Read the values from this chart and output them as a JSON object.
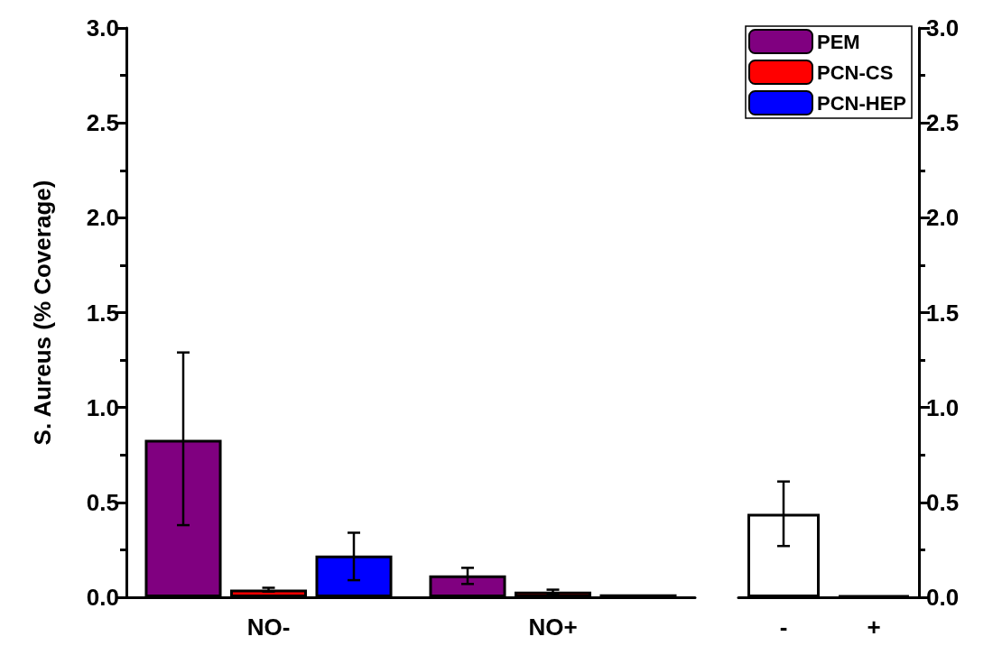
{
  "chart_data": [
    {
      "type": "bar",
      "ylabel": "S. Aureus (% Coverage)",
      "categories": [
        "NO-",
        "NO+"
      ],
      "series": [
        {
          "name": "PEM",
          "color": "#800080",
          "values": [
            0.83,
            0.115
          ],
          "errors": [
            [
              0.38,
              1.29
            ],
            [
              0.07,
              0.155
            ]
          ]
        },
        {
          "name": "PCN-CS",
          "color": "#ff0000",
          "values": [
            0.04,
            0.03
          ],
          "errors": [
            0.01,
            0.01
          ]
        },
        {
          "name": "PCN-HEP",
          "color": "#0000ff",
          "values": [
            0.22,
            0.015
          ],
          "errors": [
            [
              0.09,
              0.34
            ],
            null
          ]
        }
      ],
      "ylim": [
        0,
        3
      ],
      "yticks": [
        {
          "value": 0,
          "label": "0.0"
        },
        {
          "value": 0.5,
          "label": "0.5"
        },
        {
          "value": 1,
          "label": "1.0"
        },
        {
          "value": 1.5,
          "label": "1.5"
        },
        {
          "value": 2,
          "label": "2.0"
        },
        {
          "value": 2.5,
          "label": "2.5"
        },
        {
          "value": 3,
          "label": "3.0"
        }
      ],
      "legend": "top right",
      "grid": false
    },
    {
      "type": "bar",
      "categories": [
        "-",
        "+"
      ],
      "series": [
        {
          "color": "#ffffff",
          "colors": [
            "#ffffff",
            "#000000"
          ],
          "values": [
            0.44,
            0.01
          ],
          "errors": [
            [
              0.27,
              0.61
            ],
            null
          ]
        }
      ],
      "ylim": [
        0,
        3
      ],
      "yticks": [
        {
          "value": 0,
          "label": "0.0"
        },
        {
          "value": 0.5,
          "label": "0.5"
        },
        {
          "value": 1,
          "label": "1.0"
        },
        {
          "value": 1.5,
          "label": "1.5"
        },
        {
          "value": 2,
          "label": "2.0"
        },
        {
          "value": 2.5,
          "label": "2.5"
        },
        {
          "value": 3,
          "label": "3.0"
        }
      ],
      "grid": false
    }
  ]
}
